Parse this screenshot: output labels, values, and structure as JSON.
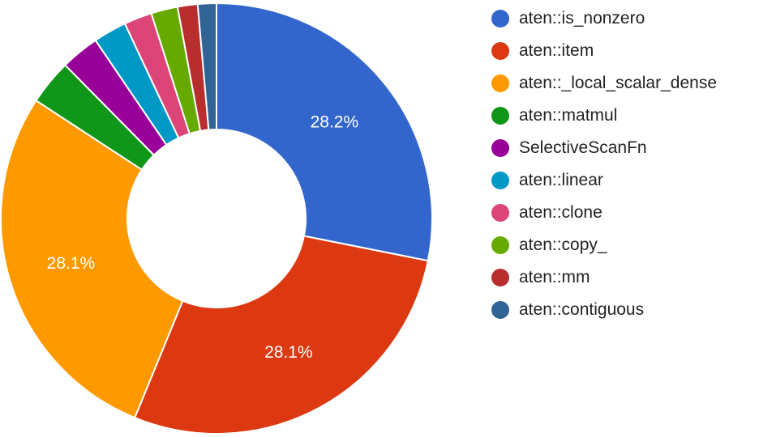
{
  "chart_data": {
    "type": "pie",
    "donut": true,
    "title": "",
    "legend_position": "right",
    "categories": [
      "aten::is_nonzero",
      "aten::item",
      "aten::_local_scalar_dense",
      "aten::matmul",
      "SelectiveScanFn",
      "aten::linear",
      "aten::clone",
      "aten::copy_",
      "aten::mm",
      "aten::contiguous"
    ],
    "values": [
      28.2,
      28.1,
      28.1,
      3.4,
      2.9,
      2.5,
      2.1,
      2.0,
      1.5,
      1.4
    ],
    "colors": [
      "#3366cc",
      "#dc3912",
      "#ff9900",
      "#109618",
      "#990099",
      "#0099c6",
      "#dd4477",
      "#66aa00",
      "#b82e2e",
      "#316395"
    ],
    "data_labels": [
      {
        "index": 0,
        "text": "28.2%"
      },
      {
        "index": 1,
        "text": "28.1%"
      },
      {
        "index": 2,
        "text": "28.1%"
      }
    ]
  }
}
